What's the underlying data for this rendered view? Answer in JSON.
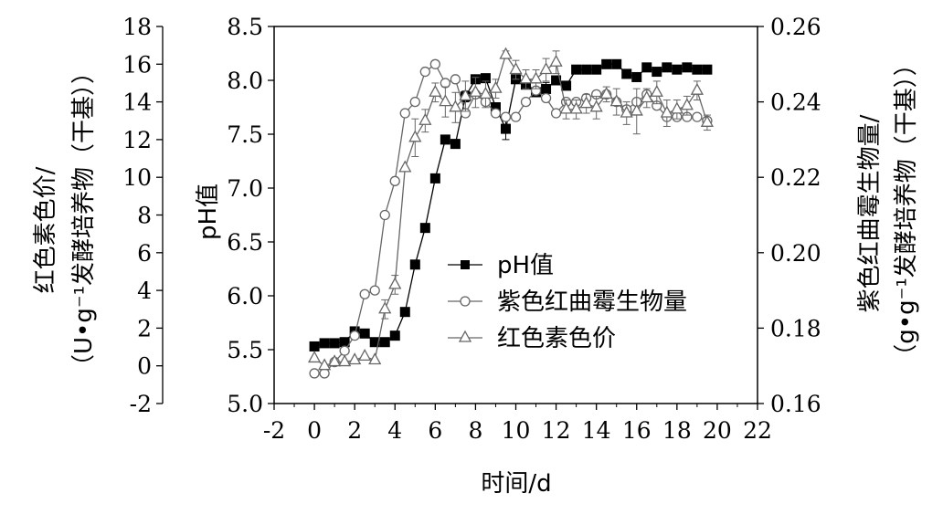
{
  "chart_data": {
    "type": "line",
    "xlabel": "时间/d",
    "x_axis": {
      "min": -2,
      "max": 22,
      "ticks": [
        -2,
        0,
        2,
        4,
        6,
        8,
        10,
        12,
        14,
        16,
        18,
        20,
        22
      ],
      "tick_labels": [
        "-2",
        "0",
        "2",
        "4",
        "6",
        "8",
        "10",
        "12",
        "14",
        "16",
        "18",
        "20",
        "22"
      ]
    },
    "y_axes": {
      "left_outer": {
        "label_line1": "红色素色价/",
        "label_line2": "（U•g⁻¹发酵培养物（干基））",
        "min": -2,
        "max": 18,
        "ticks": [
          -2,
          0,
          2,
          4,
          6,
          8,
          10,
          12,
          14,
          16,
          18
        ],
        "tick_labels": [
          "-2",
          "0",
          "2",
          "4",
          "6",
          "8",
          "10",
          "12",
          "14",
          "16",
          "18"
        ]
      },
      "left_inner": {
        "label": "pH值",
        "min": 5.0,
        "max": 8.5,
        "ticks": [
          5.0,
          5.5,
          6.0,
          6.5,
          7.0,
          7.5,
          8.0,
          8.5
        ],
        "tick_labels": [
          "5.0",
          "5.5",
          "6.0",
          "6.5",
          "7.0",
          "7.5",
          "8.0",
          "8.5"
        ]
      },
      "right": {
        "label_line1": "紫色红曲霉生物量/",
        "label_line2": "（g•g⁻¹发酵培养物（干基））",
        "min": 0.16,
        "max": 0.26,
        "ticks": [
          0.16,
          0.18,
          0.2,
          0.22,
          0.24,
          0.26
        ],
        "tick_labels": [
          "0.16",
          "0.18",
          "0.20",
          "0.22",
          "0.24",
          "0.26"
        ]
      }
    },
    "legend": {
      "placement": "center",
      "entries": [
        "pH值",
        "紫色红曲霉生物量",
        "红色素色价"
      ]
    },
    "series": [
      {
        "name": "pH值",
        "axis": "left_inner",
        "marker": "filled-square",
        "x": [
          0,
          0.5,
          1,
          1.5,
          2,
          2.5,
          3,
          3.5,
          4,
          4.5,
          5,
          5.5,
          6,
          6.5,
          7,
          7.5,
          8,
          8.5,
          9,
          9.5,
          10,
          10.5,
          11,
          11.5,
          12,
          12.5,
          13,
          13.5,
          14,
          14.5,
          15,
          15.5,
          16,
          16.5,
          17,
          17.5,
          18,
          18.5,
          19,
          19.5
        ],
        "y": [
          5.53,
          5.56,
          5.56,
          5.57,
          5.67,
          5.65,
          5.57,
          5.57,
          5.63,
          5.85,
          6.29,
          6.63,
          7.09,
          7.45,
          7.41,
          7.85,
          8.01,
          8.02,
          7.75,
          7.55,
          8.01,
          7.96,
          7.89,
          7.92,
          8.0,
          7.95,
          8.1,
          8.1,
          8.1,
          8.15,
          8.15,
          8.06,
          8.03,
          8.12,
          8.08,
          8.12,
          8.1,
          8.12,
          8.1,
          8.1
        ],
        "error": [
          0,
          0,
          0,
          0,
          0,
          0,
          0,
          0,
          0,
          0,
          0,
          0,
          0,
          0,
          0,
          0.05,
          0.03,
          0.03,
          0,
          0.1,
          0,
          0,
          0,
          0.06,
          0,
          0,
          0,
          0,
          0,
          0,
          0,
          0,
          0,
          0,
          0,
          0,
          0,
          0,
          0,
          0
        ]
      },
      {
        "name": "紫色红曲霉生物量",
        "axis": "right",
        "marker": "open-circle",
        "x": [
          0,
          0.5,
          1,
          1.5,
          2,
          2.5,
          3,
          3.5,
          4,
          4.5,
          5,
          5.5,
          6,
          6.5,
          7,
          7.5,
          8,
          8.5,
          9,
          9.5,
          10,
          10.5,
          11,
          11.5,
          12,
          12.5,
          13,
          13.5,
          14,
          14.5,
          15,
          15.5,
          16,
          16.5,
          17,
          17.5,
          18,
          18.5,
          19,
          19.5
        ],
        "y": [
          0.168,
          0.168,
          0.171,
          0.174,
          0.178,
          0.189,
          0.19,
          0.21,
          0.219,
          0.237,
          0.24,
          0.248,
          0.25,
          0.245,
          0.246,
          0.237,
          0.242,
          0.24,
          0.237,
          0.236,
          0.236,
          0.24,
          0.243,
          0.241,
          0.237,
          0.24,
          0.24,
          0.241,
          0.242,
          0.242,
          0.24,
          0.238,
          0.24,
          0.242,
          0.239,
          0.236,
          0.236,
          0.236,
          0.236,
          0.235
        ]
      },
      {
        "name": "红色素色价",
        "axis": "left_outer",
        "marker": "open-triangle",
        "x": [
          0,
          0.5,
          1,
          1.5,
          2,
          2.5,
          3,
          3.5,
          4,
          4.5,
          5,
          5.5,
          6,
          6.5,
          7,
          7.5,
          8,
          8.5,
          9,
          9.5,
          10,
          10.5,
          11,
          11.5,
          12,
          12.5,
          13,
          13.5,
          14,
          14.5,
          15,
          15.5,
          16,
          16.5,
          17,
          17.5,
          18,
          18.5,
          19,
          19.5
        ],
        "y": [
          0.4,
          0.0,
          0.2,
          0.2,
          0.3,
          0.5,
          0.3,
          3.0,
          4.3,
          10.5,
          12.1,
          13.0,
          14.5,
          14.0,
          13.7,
          14.3,
          14.5,
          14.4,
          14.7,
          16.5,
          15.7,
          15.2,
          15.2,
          15.7,
          16.1,
          13.6,
          13.6,
          13.9,
          13.7,
          14.4,
          14.0,
          13.4,
          13.5,
          14.2,
          14.5,
          13.4,
          13.6,
          13.8,
          14.6,
          12.9
        ],
        "error": [
          0,
          0,
          0,
          0,
          0,
          0,
          0,
          0.5,
          0.5,
          0,
          1.0,
          0.6,
          0.5,
          0.8,
          0.8,
          0.8,
          0.8,
          0.7,
          0.5,
          0.2,
          0.5,
          0.5,
          0.5,
          0.6,
          0.6,
          0.5,
          0.5,
          0.5,
          0.6,
          0.4,
          0.7,
          0.6,
          1.2,
          0.5,
          0.6,
          0.7,
          0.5,
          0.5,
          0.5,
          0.4
        ]
      }
    ]
  }
}
